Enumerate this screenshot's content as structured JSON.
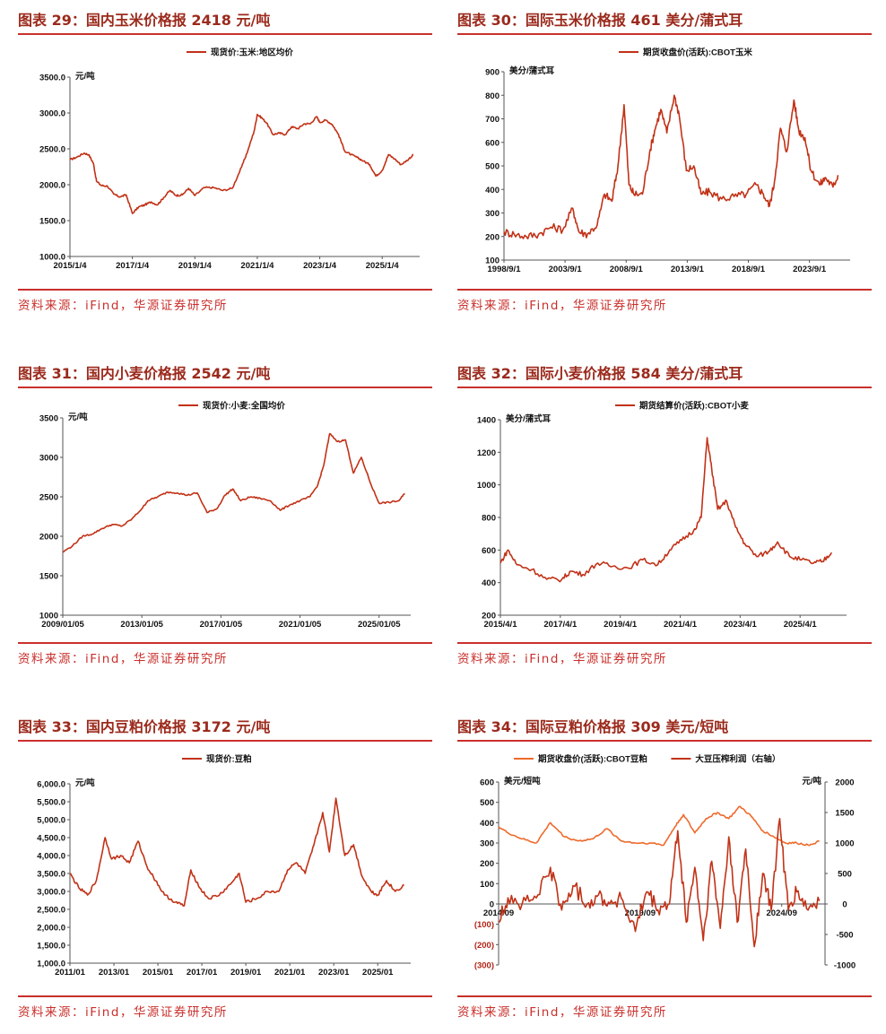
{
  "colors": {
    "accent": "#c9302c",
    "title": "#9b2a1c",
    "series_main": "#c13217",
    "series_alt": "#ee6a2c"
  },
  "panels": [
    {
      "title": "图表 29：国内玉米价格报 2418 元/吨",
      "source": "资料来源：iFind，华源证券研究所"
    },
    {
      "title": "图表 30：国际玉米价格报 461 美分/蒲式耳",
      "source": "资料来源：iFind，华源证券研究所"
    },
    {
      "title": "图表 31：国内小麦价格报 2542 元/吨",
      "source": "资料来源：iFind，华源证券研究所"
    },
    {
      "title": "图表 32：国际小麦价格报 584 美分/蒲式耳",
      "source": "资料来源：iFind，华源证券研究所"
    },
    {
      "title": "图表 33：国内豆粕价格报 3172 元/吨",
      "source": "资料来源：iFind，华源证券研究所"
    },
    {
      "title": "图表 34：国际豆粕价格报 309 美元/短吨",
      "source": "资料来源：iFind，华源证券研究所"
    }
  ],
  "chart_data": [
    {
      "type": "line",
      "title": "国内玉米价格",
      "unit": "元/吨",
      "legend": [
        "现货价:玉米:地区均价"
      ],
      "xlim": [
        2015.0,
        2026.2
      ],
      "xticks": [
        {
          "x": 2015.0,
          "label": "2015/1/4"
        },
        {
          "x": 2017.0,
          "label": "2017/1/4"
        },
        {
          "x": 2019.0,
          "label": "2019/1/4"
        },
        {
          "x": 2021.0,
          "label": "2021/1/4"
        },
        {
          "x": 2023.0,
          "label": "2023/1/4"
        },
        {
          "x": 2025.0,
          "label": "2025/1/4"
        }
      ],
      "ylim": [
        1000,
        3500
      ],
      "yticks": [
        1000,
        1500,
        2000,
        2500,
        3000,
        3500
      ],
      "ytick_labels": [
        "1000.0",
        "1500.0",
        "2000.0",
        "2500.0",
        "3000.0",
        "3500.0"
      ],
      "series": [
        {
          "name": "现货价:玉米:地区均价",
          "x": [
            2015.0,
            2015.2,
            2015.45,
            2015.6,
            2015.75,
            2015.85,
            2016.0,
            2016.2,
            2016.4,
            2016.6,
            2016.8,
            2017.0,
            2017.2,
            2017.4,
            2017.6,
            2017.8,
            2018.0,
            2018.2,
            2018.4,
            2018.6,
            2018.8,
            2019.0,
            2019.3,
            2019.6,
            2019.9,
            2020.2,
            2020.5,
            2020.7,
            2020.9,
            2021.0,
            2021.15,
            2021.3,
            2021.5,
            2021.7,
            2021.9,
            2022.1,
            2022.3,
            2022.5,
            2022.7,
            2022.9,
            2023.0,
            2023.2,
            2023.4,
            2023.6,
            2023.8,
            2024.0,
            2024.2,
            2024.4,
            2024.6,
            2024.8,
            2025.0,
            2025.2,
            2025.4,
            2025.6,
            2025.8,
            2026.0
          ],
          "y": [
            2350,
            2380,
            2440,
            2420,
            2300,
            2050,
            1990,
            1980,
            1870,
            1830,
            1860,
            1600,
            1690,
            1720,
            1760,
            1720,
            1820,
            1920,
            1850,
            1860,
            1950,
            1850,
            1960,
            1960,
            1920,
            1950,
            2250,
            2480,
            2750,
            2980,
            2930,
            2860,
            2700,
            2720,
            2700,
            2810,
            2780,
            2850,
            2850,
            2950,
            2870,
            2900,
            2840,
            2700,
            2470,
            2420,
            2380,
            2330,
            2280,
            2120,
            2200,
            2420,
            2360,
            2280,
            2340,
            2418
          ]
        }
      ]
    },
    {
      "type": "line",
      "title": "国际玉米价格",
      "unit": "美分/蒲式耳",
      "legend": [
        "期货收盘价(活跃):CBOT玉米"
      ],
      "xlim": [
        1998.67,
        2027.0
      ],
      "xticks": [
        {
          "x": 1998.67,
          "label": "1998/9/1"
        },
        {
          "x": 2003.67,
          "label": "2003/9/1"
        },
        {
          "x": 2008.67,
          "label": "2008/9/1"
        },
        {
          "x": 2013.67,
          "label": "2013/9/1"
        },
        {
          "x": 2018.67,
          "label": "2018/9/1"
        },
        {
          "x": 2023.67,
          "label": "2023/9/1"
        }
      ],
      "ylim": [
        100,
        900
      ],
      "yticks": [
        100,
        200,
        300,
        400,
        500,
        600,
        700,
        800,
        900
      ],
      "ytick_labels": [
        "100",
        "200",
        "300",
        "400",
        "500",
        "600",
        "700",
        "800",
        "900"
      ],
      "series": [
        {
          "name": "期货收盘价(活跃):CBOT玉米",
          "x": [
            1998.67,
            1999.5,
            2000.5,
            2001.5,
            2002.5,
            2003.5,
            2004.3,
            2004.8,
            2005.5,
            2006.3,
            2006.9,
            2007.5,
            2008.0,
            2008.5,
            2008.9,
            2009.3,
            2010.0,
            2010.6,
            2011.0,
            2011.5,
            2012.0,
            2012.6,
            2013.0,
            2013.6,
            2014.2,
            2014.8,
            2015.5,
            2016.5,
            2017.5,
            2018.5,
            2019.3,
            2019.9,
            2020.4,
            2020.8,
            2021.3,
            2021.8,
            2022.4,
            2022.8,
            2023.3,
            2023.8,
            2024.5,
            2025.0,
            2025.6,
            2026.0
          ],
          "y": [
            220,
            210,
            200,
            210,
            240,
            230,
            320,
            220,
            210,
            250,
            380,
            350,
            500,
            760,
            420,
            380,
            380,
            560,
            650,
            740,
            640,
            800,
            720,
            480,
            500,
            380,
            390,
            360,
            370,
            380,
            420,
            380,
            330,
            430,
            660,
            560,
            780,
            650,
            620,
            480,
            420,
            450,
            410,
            461
          ]
        }
      ]
    },
    {
      "type": "line",
      "title": "国内小麦价格",
      "unit": "元/吨",
      "legend": [
        "现货价:小麦:全国均价"
      ],
      "xlim": [
        2009.0,
        2026.6
      ],
      "xticks": [
        {
          "x": 2009.0,
          "label": "2009/01/05"
        },
        {
          "x": 2013.0,
          "label": "2013/01/05"
        },
        {
          "x": 2017.0,
          "label": "2017/01/05"
        },
        {
          "x": 2021.0,
          "label": "2021/01/05"
        },
        {
          "x": 2025.0,
          "label": "2025/01/05"
        }
      ],
      "ylim": [
        1000,
        3500
      ],
      "yticks": [
        1000,
        1500,
        2000,
        2500,
        3000,
        3500
      ],
      "ytick_labels": [
        "1000",
        "1500",
        "2000",
        "2500",
        "3000",
        "3500"
      ],
      "series": [
        {
          "name": "现货价:小麦:全国均价",
          "x": [
            2009.0,
            2009.5,
            2010.0,
            2010.5,
            2011.0,
            2011.5,
            2012.0,
            2012.5,
            2013.0,
            2013.3,
            2013.8,
            2014.3,
            2014.8,
            2015.3,
            2015.8,
            2016.3,
            2016.8,
            2017.2,
            2017.6,
            2018.0,
            2018.5,
            2019.0,
            2019.5,
            2020.0,
            2020.5,
            2021.0,
            2021.5,
            2021.9,
            2022.2,
            2022.5,
            2022.9,
            2023.3,
            2023.7,
            2024.1,
            2024.6,
            2025.0,
            2025.5,
            2026.0,
            2026.3
          ],
          "y": [
            1800,
            1880,
            2000,
            2030,
            2100,
            2150,
            2130,
            2220,
            2350,
            2450,
            2500,
            2560,
            2550,
            2520,
            2550,
            2300,
            2350,
            2520,
            2600,
            2450,
            2500,
            2480,
            2450,
            2330,
            2400,
            2450,
            2500,
            2650,
            2900,
            3300,
            3200,
            3220,
            2800,
            3000,
            2650,
            2420,
            2430,
            2450,
            2542
          ]
        }
      ]
    },
    {
      "type": "line",
      "title": "国际小麦价格",
      "unit": "美分/蒲式耳",
      "legend": [
        "期货结算价(活跃):CBOT小麦"
      ],
      "xlim": [
        2015.25,
        2026.8
      ],
      "xticks": [
        {
          "x": 2015.25,
          "label": "2015/4/1"
        },
        {
          "x": 2017.25,
          "label": "2017/4/1"
        },
        {
          "x": 2019.25,
          "label": "2019/4/1"
        },
        {
          "x": 2021.25,
          "label": "2021/4/1"
        },
        {
          "x": 2023.25,
          "label": "2023/4/1"
        },
        {
          "x": 2025.25,
          "label": "2025/4/1"
        }
      ],
      "ylim": [
        200,
        1400
      ],
      "yticks": [
        200,
        400,
        600,
        800,
        1000,
        1200,
        1400
      ],
      "ytick_labels": [
        "200",
        "400",
        "600",
        "800",
        "1000",
        "1200",
        "1400"
      ],
      "series": [
        {
          "name": "期货结算价(活跃):CBOT小麦",
          "x": [
            2015.25,
            2015.5,
            2015.8,
            2016.3,
            2016.8,
            2017.3,
            2017.6,
            2018.0,
            2018.5,
            2019.0,
            2019.5,
            2020.0,
            2020.5,
            2020.9,
            2021.3,
            2021.7,
            2021.95,
            2022.15,
            2022.3,
            2022.5,
            2022.8,
            2023.1,
            2023.4,
            2023.8,
            2024.2,
            2024.5,
            2024.9,
            2025.3,
            2025.7,
            2026.0,
            2026.3
          ],
          "y": [
            520,
            600,
            510,
            480,
            420,
            420,
            470,
            450,
            520,
            500,
            490,
            540,
            510,
            600,
            660,
            720,
            800,
            1290,
            1100,
            850,
            900,
            740,
            640,
            560,
            590,
            650,
            560,
            540,
            520,
            530,
            584
          ]
        }
      ]
    },
    {
      "type": "line",
      "title": "国内豆粕价格",
      "unit": "元/吨",
      "legend": [
        "现货价:豆粕"
      ],
      "xlim": [
        2011.0,
        2026.5
      ],
      "xticks": [
        {
          "x": 2011.0,
          "label": "2011/01"
        },
        {
          "x": 2013.0,
          "label": "2013/01"
        },
        {
          "x": 2015.0,
          "label": "2015/01"
        },
        {
          "x": 2017.0,
          "label": "2017/01"
        },
        {
          "x": 2019.0,
          "label": "2019/01"
        },
        {
          "x": 2021.0,
          "label": "2021/01"
        },
        {
          "x": 2023.0,
          "label": "2023/01"
        },
        {
          "x": 2025.0,
          "label": "2025/01"
        }
      ],
      "ylim": [
        1000,
        6000
      ],
      "yticks": [
        1000,
        1500,
        2000,
        2500,
        3000,
        3500,
        4000,
        4500,
        5000,
        5500,
        6000
      ],
      "ytick_labels": [
        "1,000.0",
        "1,500.0",
        "2,000.0",
        "2,500.0",
        "3,000.0",
        "3,500.0",
        "4,000.0",
        "4,500.0",
        "5,000.0",
        "5,500.0",
        "6,000.0"
      ],
      "series": [
        {
          "name": "现货价:豆粕",
          "x": [
            2011.0,
            2011.4,
            2011.8,
            2012.2,
            2012.6,
            2012.9,
            2013.3,
            2013.7,
            2014.1,
            2014.5,
            2014.9,
            2015.3,
            2015.8,
            2016.2,
            2016.5,
            2016.9,
            2017.3,
            2017.8,
            2018.3,
            2018.7,
            2019.0,
            2019.5,
            2020.0,
            2020.5,
            2020.9,
            2021.3,
            2021.7,
            2022.1,
            2022.5,
            2022.8,
            2023.1,
            2023.5,
            2023.9,
            2024.3,
            2024.7,
            2025.0,
            2025.4,
            2025.8,
            2026.2
          ],
          "y": [
            3500,
            3100,
            2900,
            3300,
            4500,
            3900,
            4000,
            3800,
            4400,
            3700,
            3300,
            2900,
            2700,
            2600,
            3600,
            3100,
            2800,
            2900,
            3200,
            3500,
            2700,
            2800,
            3000,
            3000,
            3600,
            3800,
            3500,
            4300,
            5200,
            4100,
            5600,
            4000,
            4300,
            3400,
            3000,
            2900,
            3300,
            3000,
            3172
          ]
        }
      ]
    },
    {
      "type": "line",
      "title": "国际豆粕价格",
      "unit_left": "美元/短吨",
      "unit_right": "元/吨",
      "legend": [
        "期货收盘价(活跃):CBOT豆粕",
        "大豆压榨利润（右轴）"
      ],
      "xlim": [
        2014.67,
        2026.2
      ],
      "xticks": [
        {
          "x": 2014.67,
          "label": "2014/09"
        },
        {
          "x": 2019.67,
          "label": "2019/09"
        },
        {
          "x": 2024.67,
          "label": "2024/09"
        }
      ],
      "ylim": [
        -300,
        600
      ],
      "yticks": [
        -300,
        -200,
        -100,
        0,
        100,
        200,
        300,
        400,
        500,
        600
      ],
      "ytick_labels": [
        "(300)",
        "(200)",
        "(100)",
        "0",
        "100",
        "200",
        "300",
        "400",
        "500",
        "600"
      ],
      "ylim_right": [
        -1000,
        2000
      ],
      "yticks_right": [
        -1000,
        -500,
        0,
        500,
        1000,
        1500,
        2000
      ],
      "ytick_labels_right": [
        "-1000",
        "-500",
        "0",
        "500",
        "1000",
        "1500",
        "2000"
      ],
      "series": [
        {
          "name": "期货收盘价(活跃):CBOT豆粕",
          "axis": "left",
          "x": [
            2014.67,
            2015.0,
            2015.5,
            2016.0,
            2016.5,
            2017.0,
            2017.5,
            2018.0,
            2018.5,
            2019.0,
            2019.5,
            2020.0,
            2020.5,
            2020.9,
            2021.2,
            2021.6,
            2022.0,
            2022.4,
            2022.8,
            2023.2,
            2023.6,
            2024.0,
            2024.4,
            2024.8,
            2025.2,
            2025.6,
            2026.0
          ],
          "y": [
            380,
            350,
            320,
            300,
            400,
            330,
            310,
            320,
            370,
            310,
            300,
            300,
            290,
            380,
            440,
            350,
            420,
            450,
            420,
            480,
            430,
            360,
            330,
            300,
            300,
            290,
            309
          ]
        },
        {
          "name": "大豆压榨利润（右轴）",
          "axis": "right",
          "x": [
            2014.67,
            2015.0,
            2015.5,
            2016.0,
            2016.5,
            2016.9,
            2017.3,
            2017.8,
            2018.2,
            2018.6,
            2019.0,
            2019.5,
            2019.9,
            2020.3,
            2020.7,
            2021.0,
            2021.3,
            2021.6,
            2021.9,
            2022.2,
            2022.5,
            2022.8,
            2023.1,
            2023.4,
            2023.7,
            2024.0,
            2024.3,
            2024.6,
            2024.9,
            2025.2,
            2025.6,
            2026.0
          ],
          "y": [
            -300,
            100,
            0,
            100,
            600,
            -100,
            300,
            0,
            150,
            0,
            100,
            -450,
            200,
            -100,
            0,
            1200,
            -300,
            600,
            -600,
            700,
            -400,
            1100,
            -300,
            900,
            -700,
            500,
            -100,
            1400,
            -100,
            200,
            -100,
            50
          ]
        }
      ]
    }
  ]
}
